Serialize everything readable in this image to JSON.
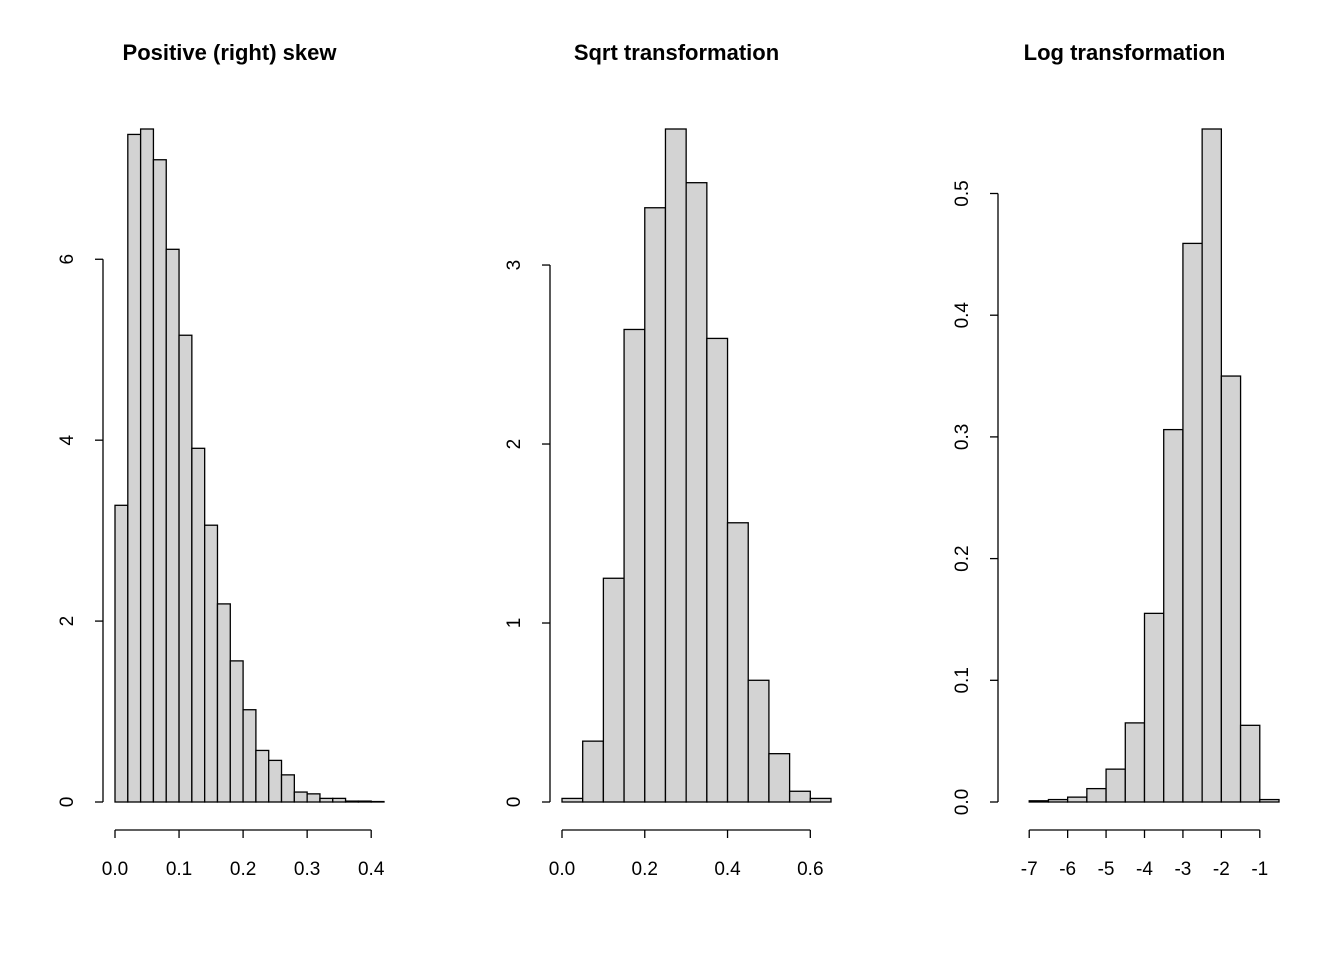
{
  "chart_data": [
    {
      "type": "histogram",
      "title": "Positive (right) skew",
      "bins": [
        0,
        0.02,
        0.04,
        0.06,
        0.08,
        0.1,
        0.12,
        0.14,
        0.16,
        0.18,
        0.2,
        0.22,
        0.24,
        0.26,
        0.28,
        0.3,
        0.32,
        0.34,
        0.36,
        0.38,
        0.4,
        0.42
      ],
      "values": [
        3.28,
        7.38,
        7.44,
        7.1,
        6.11,
        5.16,
        3.91,
        3.06,
        2.19,
        1.56,
        1.02,
        0.57,
        0.46,
        0.3,
        0.11,
        0.09,
        0.04,
        0.04,
        0.01,
        0.01,
        0.005
      ],
      "color": "#d3d3d3",
      "xlim": [
        0,
        0.42
      ],
      "ylim": [
        0,
        7.44
      ],
      "xticks": [
        {
          "value": 0,
          "label": "0.0"
        },
        0.1,
        0.2,
        0.3,
        0.4
      ],
      "yticks": [
        0,
        2,
        4,
        6
      ]
    },
    {
      "type": "histogram",
      "title": "Sqrt transformation",
      "bins": [
        0,
        0.05,
        0.1,
        0.15,
        0.2,
        0.25,
        0.3,
        0.35,
        0.4,
        0.45,
        0.5,
        0.55,
        0.6,
        0.65
      ],
      "values": [
        0.02,
        0.34,
        1.25,
        2.64,
        3.32,
        3.76,
        3.46,
        2.59,
        1.56,
        0.68,
        0.27,
        0.06,
        0.02
      ],
      "color": "#d3d3d3",
      "xlim": [
        0,
        0.65
      ],
      "ylim": [
        0,
        3.76
      ],
      "xticks": [
        {
          "value": 0,
          "label": "0.0"
        },
        0.2,
        0.4,
        0.6
      ],
      "yticks": [
        0,
        1,
        2,
        3
      ]
    },
    {
      "type": "histogram",
      "title": "Log transformation",
      "bins": [
        -7.5,
        -7,
        -6.5,
        -6,
        -5.5,
        -5,
        -4.5,
        -4,
        -3.5,
        -3,
        -2.5,
        -2,
        -1.5,
        -1,
        -0.5
      ],
      "values": [
        0,
        0.001,
        0.002,
        0.004,
        0.011,
        0.027,
        0.065,
        0.155,
        0.306,
        0.459,
        0.553,
        0.35,
        0.063,
        0.002
      ],
      "color": "#d3d3d3",
      "xlim": [
        -7.5,
        -0.5
      ],
      "ylim": [
        0,
        0.553
      ],
      "xticks": [
        -7,
        -6,
        -5,
        -4,
        -3,
        -2,
        -1
      ],
      "yticks": [
        {
          "value": 0,
          "label": "0.0"
        },
        0.1,
        0.2,
        0.3,
        0.4,
        0.5
      ]
    }
  ]
}
